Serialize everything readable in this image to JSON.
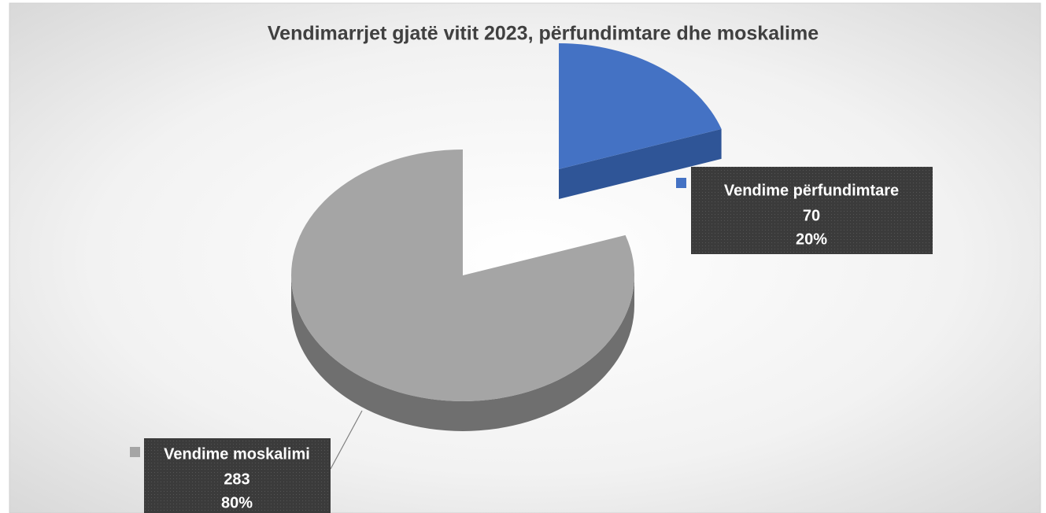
{
  "chart_data": {
    "type": "pie3d",
    "title": "Vendimarrjet gjatë vitit 2023, përfundimtare dhe moskalime",
    "categories": [
      "Vendime përfundimtare",
      "Vendime moskalimi"
    ],
    "values": [
      70,
      283
    ],
    "percent_labels": [
      "20%",
      "80%"
    ],
    "colors": [
      "#4472c4",
      "#a5a5a5"
    ],
    "side_colors": [
      "#2f5597",
      "#6f6f6f"
    ]
  }
}
